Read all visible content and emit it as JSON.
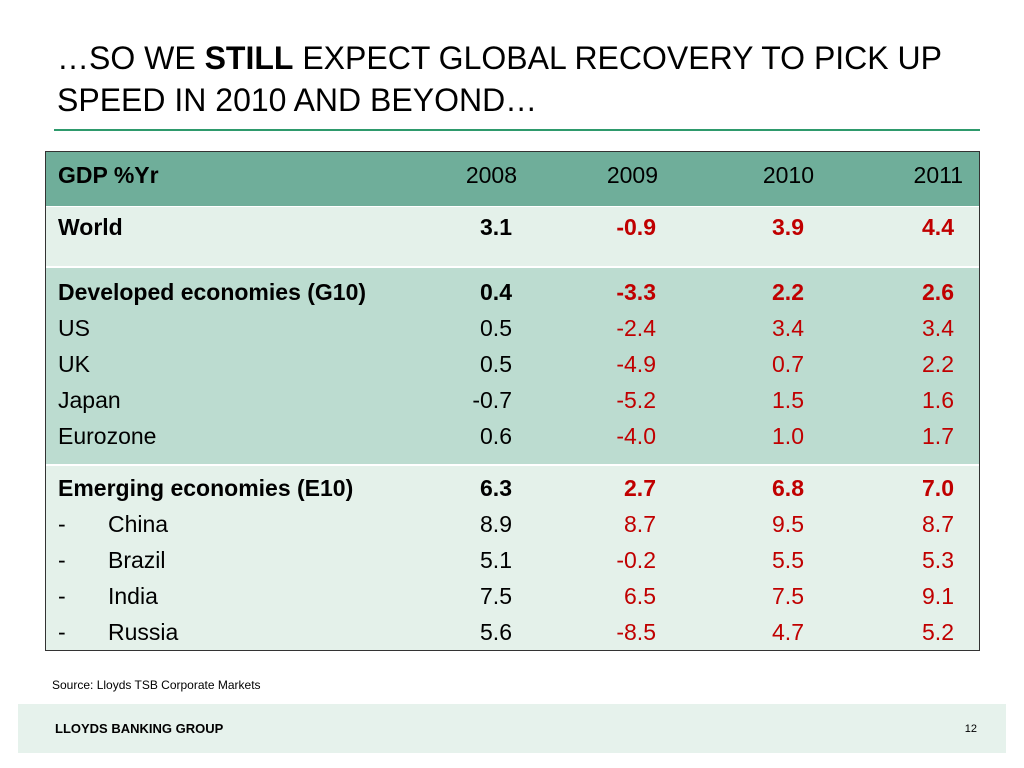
{
  "slide": {
    "title_pre": "…SO WE ",
    "title_emph": "STILL",
    "title_post": " EXPECT GLOBAL RECOVERY TO PICK UP SPEED IN 2010 AND BEYOND…",
    "source": "Source: Lloyds TSB Corporate Markets",
    "footer_brand": "LLOYDS BANKING GROUP",
    "page_number": "12",
    "colors": {
      "rule": "#2e9a6c",
      "header_bg": "#6fae9a",
      "light_bg": "#e4f1ea",
      "mid_bg": "#bcdcd0",
      "forecast_red": "#c00000",
      "footer_bg": "#e6f2ec"
    }
  },
  "table": {
    "header": {
      "label": "GDP %Yr",
      "years": [
        "2008",
        "2009",
        "2010",
        "2011"
      ]
    },
    "world": {
      "label": "World",
      "values": [
        "3.1",
        "-0.9",
        "3.9",
        "4.4"
      ]
    },
    "developed": {
      "label": "Developed economies (G10)",
      "values": [
        "0.4",
        "-3.3",
        "2.2",
        "2.6"
      ],
      "rows": [
        {
          "label": "US",
          "values": [
            "0.5",
            "-2.4",
            "3.4",
            "3.4"
          ]
        },
        {
          "label": "UK",
          "values": [
            "0.5",
            "-4.9",
            "0.7",
            "2.2"
          ]
        },
        {
          "label": "Japan",
          "values": [
            "-0.7",
            "-5.2",
            "1.5",
            "1.6"
          ]
        },
        {
          "label": "Eurozone",
          "values": [
            "0.6",
            "-4.0",
            "1.0",
            "1.7"
          ]
        }
      ]
    },
    "emerging": {
      "label": "Emerging economies (E10)",
      "values": [
        "6.3",
        "2.7",
        "6.8",
        "7.0"
      ],
      "rows": [
        {
          "dash": "-",
          "label": "China",
          "values": [
            "8.9",
            "8.7",
            "9.5",
            "8.7"
          ]
        },
        {
          "dash": "-",
          "label": "Brazil",
          "values": [
            "5.1",
            "-0.2",
            "5.5",
            "5.3"
          ]
        },
        {
          "dash": "-",
          "label": "India",
          "values": [
            "7.5",
            "6.5",
            "7.5",
            "9.1"
          ]
        },
        {
          "dash": "-",
          "label": "Russia",
          "values": [
            "5.6",
            "-8.5",
            "4.7",
            "5.2"
          ]
        }
      ]
    }
  }
}
